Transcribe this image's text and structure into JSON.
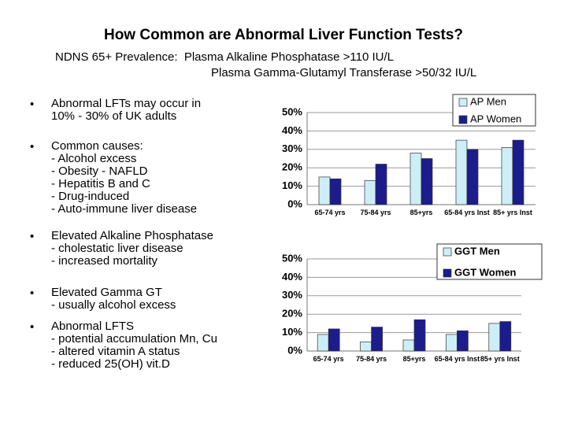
{
  "title": "How Common are Abnormal Liver Function Tests?",
  "subtitle": [
    "NDNS 65+ Prevalence:  Plasma Alkaline Phosphatase >110 IU/L",
    "Plasma Gamma-Glutamyl Transferase >50/32 IU/L"
  ],
  "bullets": [
    [
      "Abnormal LFTs may occur in",
      "10% - 30% of UK adults"
    ],
    [
      "Common causes:",
      "- Alcohol excess",
      "- Obesity - NAFLD",
      "- Hepatitis B and C",
      "- Drug-induced",
      "- Auto-immune liver disease"
    ],
    [
      "Elevated Alkaline Phosphatase",
      "- cholestatic liver disease",
      "- increased mortality"
    ],
    [
      "Elevated Gamma GT",
      "- usually alcohol excess"
    ],
    [
      "Abnormal LFTS",
      "- potential accumulation Mn, Cu",
      "- altered vitamin A status",
      "- reduced 25(OH) vit.D"
    ]
  ],
  "chart_data": [
    {
      "type": "bar",
      "categories": [
        "65-74 yrs",
        "75-84 yrs",
        "85+yrs",
        "65-84 yrs Inst",
        "85+ yrs Inst"
      ],
      "series": [
        {
          "name": "AP Men",
          "color": "#cdeef6",
          "values": [
            15,
            13,
            28,
            35,
            31
          ]
        },
        {
          "name": "AP Women",
          "color": "#1c1c8c",
          "values": [
            14,
            22,
            25,
            30,
            35
          ]
        }
      ],
      "ylim": [
        0,
        50
      ],
      "yticks": [
        {
          "value": 0,
          "label": "0%"
        },
        {
          "value": 10,
          "label": "10%"
        },
        {
          "value": 20,
          "label": "20%"
        },
        {
          "value": 30,
          "label": "30%"
        },
        {
          "value": 40,
          "label": "40%"
        },
        {
          "value": 50,
          "label": "50%"
        }
      ],
      "grid": true
    },
    {
      "type": "bar",
      "categories": [
        "65-74 yrs",
        "75-84 yrs",
        "85+yrs",
        "65-84 yrs Inst",
        "85+ yrs Inst"
      ],
      "series": [
        {
          "name": "GGT Men",
          "color": "#cdeef6",
          "values": [
            9,
            5,
            6,
            9,
            15
          ]
        },
        {
          "name": "GGT Women",
          "color": "#1c1c8c",
          "values": [
            12,
            13,
            17,
            11,
            16
          ]
        }
      ],
      "ylim": [
        0,
        50
      ],
      "yticks": [
        {
          "value": 0,
          "label": "0%"
        },
        {
          "value": 10,
          "label": "10%"
        },
        {
          "value": 20,
          "label": "20%"
        },
        {
          "value": 30,
          "label": "30%"
        },
        {
          "value": 40,
          "label": "40%"
        },
        {
          "value": 50,
          "label": "50%"
        }
      ],
      "grid": true
    }
  ]
}
